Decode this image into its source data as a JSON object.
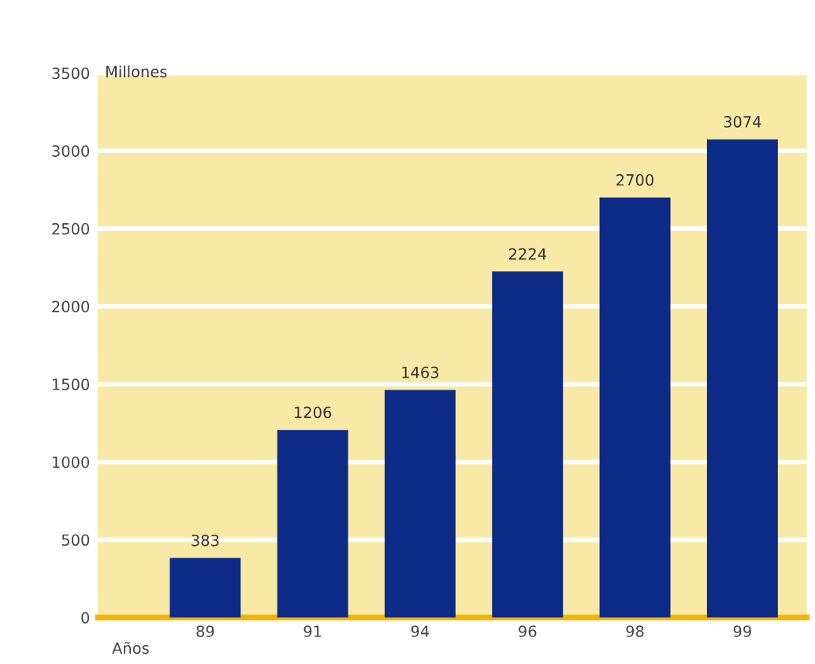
{
  "chart_data": {
    "type": "bar",
    "xlabel": "Años",
    "ylabel": "Millones",
    "categories": [
      "89",
      "91",
      "94",
      "96",
      "98",
      "99"
    ],
    "values": [
      383,
      1206,
      1463,
      2224,
      2700,
      3074
    ],
    "color": "#0c2a86",
    "ylim": [
      0,
      3500
    ],
    "yticks": [
      0,
      500,
      1000,
      1500,
      2000,
      2500,
      3000,
      3500
    ],
    "grid": "y",
    "data_labels": true
  }
}
